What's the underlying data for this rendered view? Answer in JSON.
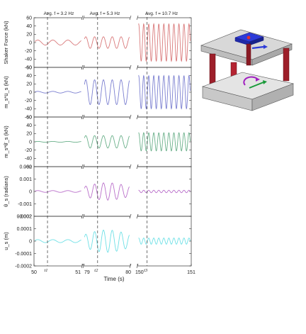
{
  "chart_data": {
    "type": "line",
    "xlabel": "Time (s)",
    "segments": [
      {
        "xlim": [
          50,
          51
        ],
        "ticks": [
          "50",
          "51"
        ],
        "annotation": "Avg. f = 3.2 Hz",
        "marker": "t1",
        "marker_t": 50.28,
        "freq_hz": 3.2
      },
      {
        "xlim": [
          79,
          80
        ],
        "ticks": [
          "79",
          "80"
        ],
        "annotation": "Avg. f = 5.3 Hz",
        "marker": "t2",
        "marker_t": 79.3,
        "freq_hz": 5.3
      },
      {
        "xlim": [
          150,
          151
        ],
        "ticks": [
          "150",
          "151"
        ],
        "annotation": "Avg. f = 10.7 Hz",
        "marker": "t3",
        "marker_t": 150.18,
        "freq_hz": 10.7
      }
    ],
    "series": [
      {
        "name": "Shaker Force (kN)",
        "color": "#d9797a",
        "ylim": [
          -60,
          60
        ],
        "yticks": [
          "60",
          "40",
          "20",
          "0",
          "-20",
          "-40",
          "-60"
        ],
        "amplitudes": [
          6,
          14,
          45
        ],
        "offsets": [
          0,
          0,
          0
        ]
      },
      {
        "name": "m_s*ü_s (kN)",
        "color": "#7b7fd0",
        "ylim": [
          -60,
          60
        ],
        "yticks": [
          "60",
          "40",
          "20",
          "0",
          "-20",
          "-40",
          "-60"
        ],
        "amplitudes": [
          2,
          30,
          40
        ],
        "offsets": [
          0,
          0,
          0
        ]
      },
      {
        "name": "m_s*θ̈_s (kN)",
        "color": "#6ab08a",
        "ylim": [
          -60,
          60
        ],
        "yticks": [
          "60",
          "40",
          "20",
          "0",
          "-20",
          "-40",
          "-60"
        ],
        "amplitudes": [
          1,
          15,
          22
        ],
        "offsets": [
          0,
          0,
          0
        ]
      },
      {
        "name": "θ_s (radians)",
        "color": "#b96fca",
        "ylim": [
          -0.002,
          0.002
        ],
        "yticks": [
          "0.002",
          "0.001",
          "0",
          "-0.001",
          "-0.002"
        ],
        "amplitudes": [
          7e-05,
          0.0007,
          0.0001
        ],
        "offsets": [
          0,
          0,
          0
        ]
      },
      {
        "name": "u_s (m)",
        "color": "#6ee0e6",
        "ylim": [
          -0.0002,
          0.0002
        ],
        "yticks": [
          "0.0002",
          "0.0001",
          "0",
          "-0.0001",
          "-0.0002"
        ],
        "amplitudes": [
          1.2e-05,
          9e-05,
          2.5e-05
        ],
        "offsets": [
          0,
          0,
          0
        ]
      }
    ],
    "grid": false,
    "legend": "none"
  },
  "labels": {
    "ylabels": [
      "Shaker Force (kN)",
      "m",
      "θ",
      "u"
    ],
    "m_sub": "s",
    "dots": "*ü",
    "theta_dots": "*θ̈"
  }
}
